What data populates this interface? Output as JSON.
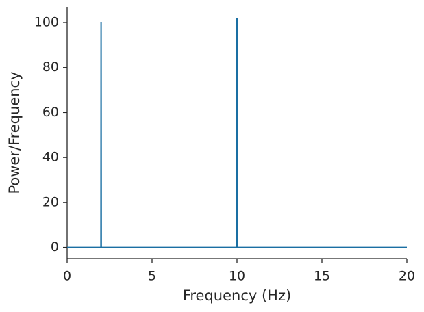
{
  "chart_data": {
    "type": "line",
    "x_label": "Frequency (Hz)",
    "y_label": "Power/Frequency",
    "x": [
      0,
      1.99,
      2,
      2.01,
      9.99,
      10,
      10.01,
      20
    ],
    "values": [
      0,
      0,
      100.3,
      0,
      0,
      102,
      0,
      0
    ],
    "color": "#1a6fa3",
    "xlim": [
      0,
      20
    ],
    "xticks": [
      0,
      5,
      10,
      15,
      20
    ],
    "ylim": [
      -5,
      107
    ],
    "yticks": [
      0,
      20,
      40,
      60,
      80,
      100
    ]
  }
}
